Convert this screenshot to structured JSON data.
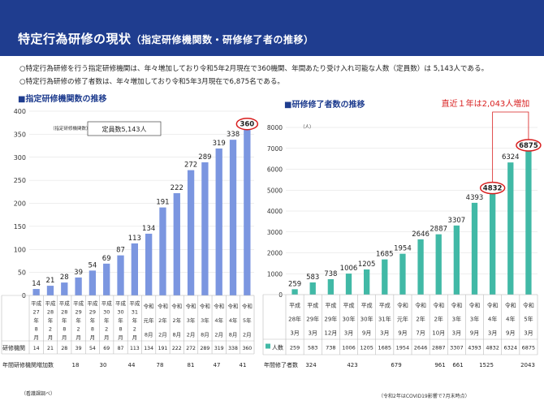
{
  "header": {
    "title": "特定行為研修の現状",
    "subtitle": "（指定研修機関数・研修修了者の推移）"
  },
  "bullets": [
    "○特定行為研修を行う指定研修機関は、年々増加しており令和5年2月現在で360機関、年間あたり受け入れ可能な人数（定員数）は 5,143人である。",
    "○特定行為研修の修了者数は、年々増加しており令和5年3月現在で6,875名である。"
  ],
  "source_note": "（看護課調べ）",
  "chart_data": [
    {
      "type": "bar",
      "title": "■指定研修機関数の推移",
      "legend_note": "（指定研修機関数）",
      "annotation": "定員数5,143人",
      "ylim": [
        0,
        400
      ],
      "yticks": [
        0,
        50,
        100,
        150,
        200,
        250,
        300,
        350,
        400
      ],
      "bar_color": "#7b96e0",
      "highlight_color": "#d81e1e",
      "categories": [
        [
          "平成",
          "27",
          "年",
          "8",
          "月"
        ],
        [
          "平成",
          "28",
          "年",
          "2",
          "月"
        ],
        [
          "平成",
          "28",
          "年",
          "8",
          "月"
        ],
        [
          "平成",
          "29",
          "年",
          "2",
          "月"
        ],
        [
          "平成",
          "29",
          "年",
          "8",
          "月"
        ],
        [
          "平成",
          "30",
          "年",
          "2",
          "月"
        ],
        [
          "平成",
          "30",
          "年",
          "8",
          "月"
        ],
        [
          "平成",
          "31",
          "年",
          "2",
          "月"
        ],
        [
          "令和",
          "元年",
          "8月"
        ],
        [
          "令和",
          "2年",
          "2月"
        ],
        [
          "令和",
          "2年",
          "8月"
        ],
        [
          "令和",
          "3年",
          "2月"
        ],
        [
          "令和",
          "3年",
          "8月"
        ],
        [
          "令和",
          "4年",
          "2月"
        ],
        [
          "令和",
          "4年",
          "8月"
        ],
        [
          "令和",
          "5年",
          "2月"
        ]
      ],
      "values": [
        14,
        21,
        28,
        39,
        54,
        69,
        87,
        113,
        134,
        191,
        222,
        272,
        289,
        319,
        338,
        360
      ],
      "highlight_index": 15,
      "table_row_label": "研修機関",
      "increase_label": "年間研修機関増加数",
      "increases": [
        "18",
        "30",
        "44",
        "78",
        "81",
        "47",
        "41"
      ]
    },
    {
      "type": "bar",
      "title": "■研修修了者数の推移",
      "unit": "（人）",
      "annotation": "直近１年は2,043人増加",
      "ylim": [
        0,
        8000
      ],
      "yticks": [
        0,
        1000,
        2000,
        3000,
        4000,
        5000,
        6000,
        7000,
        8000
      ],
      "bar_color": "#41b9a6",
      "highlight_color": "#d81e1e",
      "categories": [
        [
          "平成",
          "28年",
          "3月"
        ],
        [
          "平成",
          "29年",
          "3月"
        ],
        [
          "平成",
          "29年",
          "12月"
        ],
        [
          "平成",
          "30年",
          "3月"
        ],
        [
          "平成",
          "30年",
          "9月"
        ],
        [
          "平成",
          "31年",
          "3月"
        ],
        [
          "令和",
          "元年",
          "9月"
        ],
        [
          "令和",
          "2年",
          "7月"
        ],
        [
          "令和",
          "2年",
          "10月"
        ],
        [
          "令和",
          "3年",
          "3月"
        ],
        [
          "令和",
          "3年",
          "9月"
        ],
        [
          "令和",
          "4年",
          "3月"
        ],
        [
          "令和",
          "4年",
          "9月"
        ],
        [
          "令和",
          "5年",
          "3月"
        ]
      ],
      "values": [
        259,
        583,
        738,
        1006,
        1205,
        1685,
        1954,
        2646,
        2887,
        3307,
        4393,
        4832,
        6324,
        6875
      ],
      "highlight_indices": [
        11,
        13
      ],
      "table_row_label": "人数",
      "increase_label": "年間修了者数",
      "increases": [
        "324",
        "423",
        "679",
        "961",
        "661",
        "1525",
        "2043"
      ],
      "footnote": "（令和2年はCOVID19影響で7月末時点）"
    }
  ]
}
